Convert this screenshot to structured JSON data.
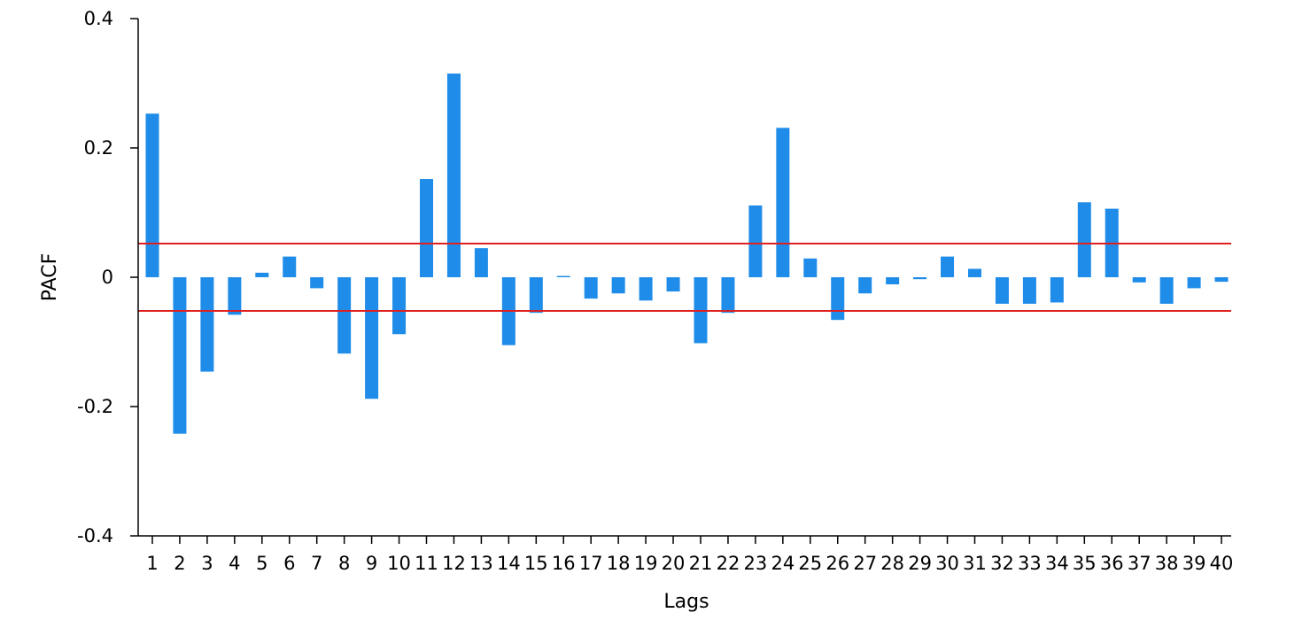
{
  "chart_data": {
    "type": "bar",
    "title": "",
    "xlabel": "Lags",
    "ylabel": "PACF",
    "ylim": [
      -0.4,
      0.4
    ],
    "yticks": [
      0.4,
      0.2,
      0,
      -0.2,
      -0.4
    ],
    "ytick_labels": [
      "0.4",
      "0.2",
      "0",
      "-0.2",
      "-0.4"
    ],
    "categories": [
      "1",
      "2",
      "3",
      "4",
      "5",
      "6",
      "7",
      "8",
      "9",
      "10",
      "11",
      "12",
      "13",
      "14",
      "15",
      "16",
      "17",
      "18",
      "19",
      "20",
      "21",
      "22",
      "23",
      "24",
      "25",
      "26",
      "27",
      "28",
      "29",
      "30",
      "31",
      "32",
      "33",
      "34",
      "35",
      "36",
      "37",
      "38",
      "39",
      "40"
    ],
    "values": [
      0.253,
      -0.242,
      -0.146,
      -0.058,
      0.007,
      0.032,
      -0.017,
      -0.118,
      -0.188,
      -0.088,
      0.152,
      0.315,
      0.045,
      -0.105,
      -0.055,
      0.002,
      -0.033,
      -0.025,
      -0.036,
      -0.022,
      -0.102,
      -0.055,
      0.111,
      0.231,
      0.029,
      -0.066,
      -0.025,
      -0.011,
      -0.003,
      0.032,
      0.013,
      -0.041,
      -0.041,
      -0.039,
      0.116,
      0.106,
      -0.008,
      -0.041,
      -0.017,
      -0.007
    ],
    "bar_color": "#1e8ce8",
    "confidence_band": [
      0.052,
      -0.052
    ],
    "confidence_color": "#e02020",
    "grid": false
  }
}
